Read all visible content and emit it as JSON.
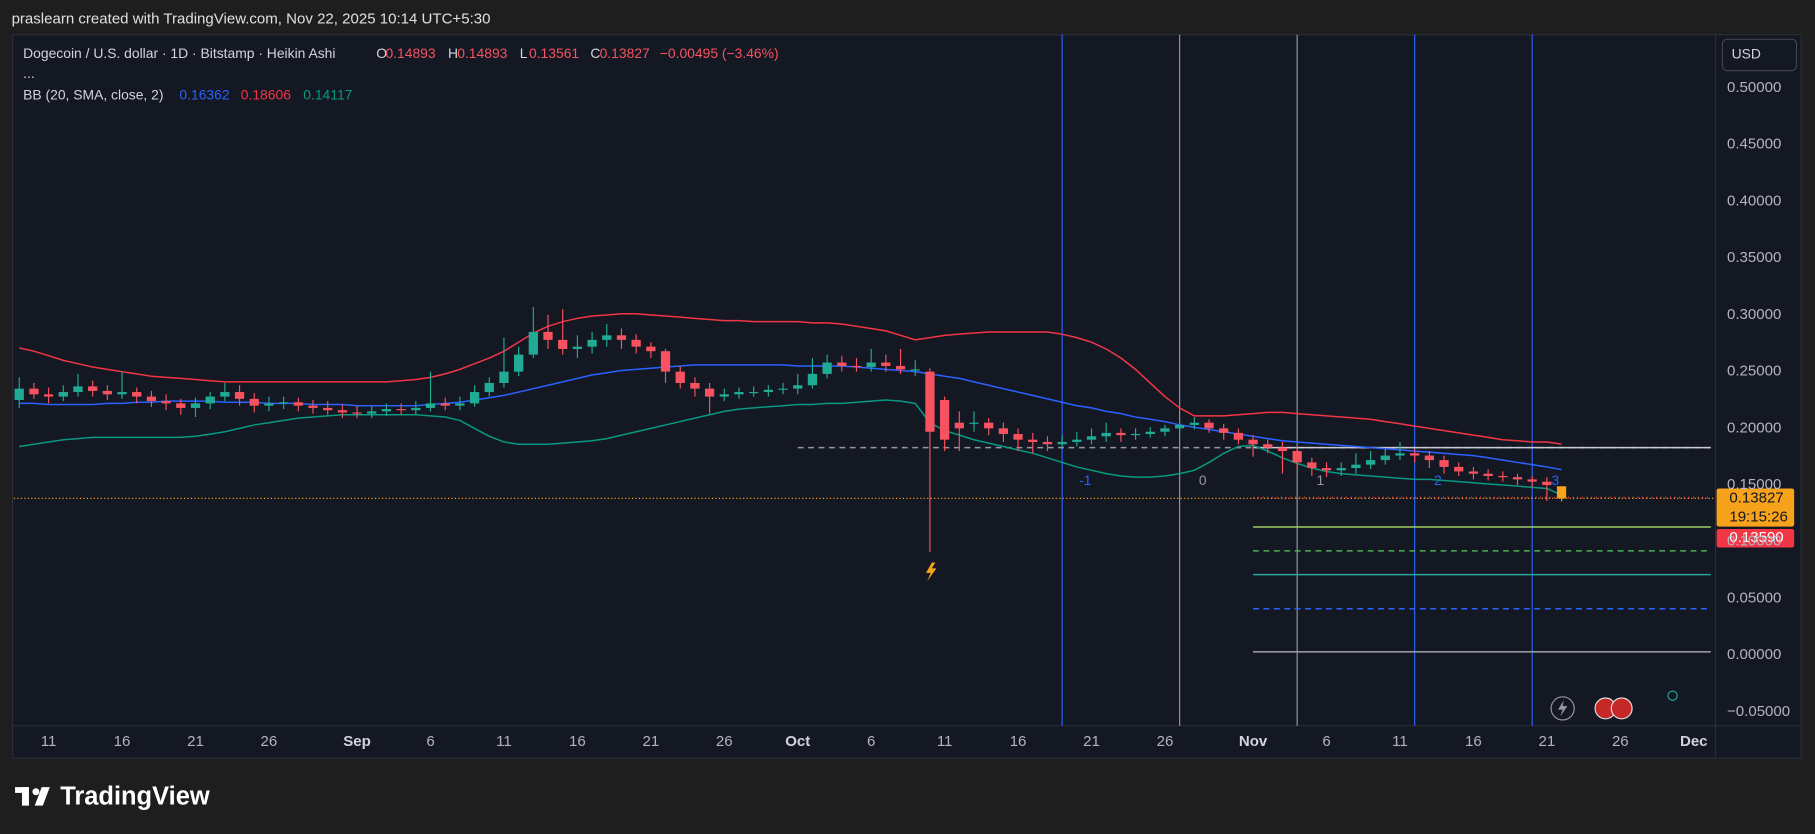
{
  "header": {
    "credit": "praslearn created with TradingView.com, Nov 22, 2025 10:14 UTC+5:30"
  },
  "chart_data": {
    "type": "candlestick",
    "symbol": "Dogecoin / U.S. dollar · 1D · Bitstamp · Heikin Ashi",
    "ohlc_keys": [
      "O",
      "H",
      "L",
      "C"
    ],
    "change": "−0.00495 (−3.46%)",
    "more": "...",
    "currency": "USD",
    "countdown": "19:15:26",
    "second_price": {
      "value": 0.1359,
      "label": "0.13590"
    },
    "up_color": "#22ab94",
    "down_color": "#f7525f",
    "last_color": "#f7a21b",
    "categories": [
      null,
      null,
      "11",
      null,
      null,
      null,
      null,
      "16",
      null,
      null,
      null,
      null,
      "21",
      null,
      null,
      null,
      null,
      "26",
      null,
      null,
      null,
      null,
      null,
      "Sep",
      null,
      null,
      null,
      null,
      "6",
      null,
      null,
      null,
      null,
      "11",
      null,
      null,
      null,
      null,
      "16",
      null,
      null,
      null,
      null,
      "21",
      null,
      null,
      null,
      null,
      "26",
      null,
      null,
      null,
      null,
      "Oct",
      null,
      null,
      null,
      null,
      "6",
      null,
      null,
      null,
      null,
      "11",
      null,
      null,
      null,
      null,
      "16",
      null,
      null,
      null,
      null,
      "21",
      null,
      null,
      null,
      null,
      "26",
      null,
      null,
      null,
      null,
      null,
      "Nov",
      null,
      null,
      null,
      null,
      "6",
      null,
      null,
      null,
      null,
      "11",
      null,
      null,
      null,
      null,
      "16",
      null,
      null,
      null,
      null,
      "21",
      null,
      null,
      null,
      null,
      "26",
      null,
      null,
      null,
      null,
      "Dec",
      null
    ],
    "month_labels": [
      "Sep",
      "Oct",
      "Nov",
      "Dec"
    ],
    "ohlc": [
      [
        0.225,
        0.245,
        0.218,
        0.235
      ],
      [
        0.235,
        0.24,
        0.226,
        0.23
      ],
      [
        0.23,
        0.236,
        0.222,
        0.228
      ],
      [
        0.228,
        0.238,
        0.224,
        0.232
      ],
      [
        0.232,
        0.248,
        0.228,
        0.237
      ],
      [
        0.237,
        0.242,
        0.228,
        0.233
      ],
      [
        0.233,
        0.238,
        0.225,
        0.23
      ],
      [
        0.23,
        0.25,
        0.226,
        0.232
      ],
      [
        0.232,
        0.236,
        0.222,
        0.228
      ],
      [
        0.228,
        0.233,
        0.219,
        0.224
      ],
      [
        0.224,
        0.23,
        0.216,
        0.222
      ],
      [
        0.222,
        0.226,
        0.212,
        0.218
      ],
      [
        0.218,
        0.227,
        0.21,
        0.222
      ],
      [
        0.222,
        0.232,
        0.217,
        0.228
      ],
      [
        0.228,
        0.24,
        0.224,
        0.232
      ],
      [
        0.232,
        0.238,
        0.22,
        0.226
      ],
      [
        0.226,
        0.231,
        0.214,
        0.22
      ],
      [
        0.22,
        0.228,
        0.215,
        0.222
      ],
      [
        0.222,
        0.228,
        0.217,
        0.223
      ],
      [
        0.223,
        0.227,
        0.215,
        0.22
      ],
      [
        0.22,
        0.225,
        0.213,
        0.218
      ],
      [
        0.218,
        0.224,
        0.212,
        0.216
      ],
      [
        0.216,
        0.221,
        0.209,
        0.214
      ],
      [
        0.214,
        0.22,
        0.209,
        0.213
      ],
      [
        0.213,
        0.22,
        0.209,
        0.215
      ],
      [
        0.215,
        0.222,
        0.211,
        0.217
      ],
      [
        0.217,
        0.222,
        0.212,
        0.216
      ],
      [
        0.216,
        0.224,
        0.212,
        0.218
      ],
      [
        0.218,
        0.25,
        0.215,
        0.222
      ],
      [
        0.222,
        0.227,
        0.216,
        0.22
      ],
      [
        0.22,
        0.228,
        0.216,
        0.222
      ],
      [
        0.222,
        0.238,
        0.219,
        0.232
      ],
      [
        0.232,
        0.245,
        0.228,
        0.24
      ],
      [
        0.24,
        0.28,
        0.236,
        0.25
      ],
      [
        0.25,
        0.272,
        0.246,
        0.265
      ],
      [
        0.265,
        0.307,
        0.262,
        0.285
      ],
      [
        0.285,
        0.3,
        0.27,
        0.278
      ],
      [
        0.278,
        0.305,
        0.265,
        0.27
      ],
      [
        0.27,
        0.282,
        0.262,
        0.272
      ],
      [
        0.272,
        0.285,
        0.266,
        0.278
      ],
      [
        0.278,
        0.292,
        0.272,
        0.282
      ],
      [
        0.282,
        0.288,
        0.27,
        0.278
      ],
      [
        0.278,
        0.283,
        0.266,
        0.272
      ],
      [
        0.272,
        0.276,
        0.262,
        0.268
      ],
      [
        0.268,
        0.27,
        0.24,
        0.25
      ],
      [
        0.25,
        0.255,
        0.235,
        0.24
      ],
      [
        0.24,
        0.245,
        0.228,
        0.235
      ],
      [
        0.235,
        0.24,
        0.213,
        0.228
      ],
      [
        0.228,
        0.235,
        0.224,
        0.23
      ],
      [
        0.23,
        0.236,
        0.226,
        0.232
      ],
      [
        0.232,
        0.237,
        0.228,
        0.232
      ],
      [
        0.232,
        0.238,
        0.228,
        0.234
      ],
      [
        0.234,
        0.24,
        0.23,
        0.235
      ],
      [
        0.235,
        0.248,
        0.23,
        0.238
      ],
      [
        0.238,
        0.262,
        0.235,
        0.248
      ],
      [
        0.248,
        0.265,
        0.244,
        0.258
      ],
      [
        0.258,
        0.264,
        0.25,
        0.255
      ],
      [
        0.255,
        0.262,
        0.25,
        0.254
      ],
      [
        0.254,
        0.27,
        0.25,
        0.258
      ],
      [
        0.258,
        0.265,
        0.25,
        0.255
      ],
      [
        0.255,
        0.27,
        0.248,
        0.252
      ],
      [
        0.252,
        0.26,
        0.246,
        0.252
      ],
      [
        0.25,
        0.253,
        0.091,
        0.197
      ],
      [
        0.225,
        0.228,
        0.18,
        0.19
      ],
      [
        0.205,
        0.215,
        0.18,
        0.2
      ],
      [
        0.205,
        0.215,
        0.197,
        0.205
      ],
      [
        0.205,
        0.209,
        0.194,
        0.2
      ],
      [
        0.2,
        0.205,
        0.188,
        0.195
      ],
      [
        0.195,
        0.2,
        0.18,
        0.19
      ],
      [
        0.19,
        0.196,
        0.178,
        0.188
      ],
      [
        0.188,
        0.193,
        0.18,
        0.186
      ],
      [
        0.186,
        0.194,
        0.182,
        0.188
      ],
      [
        0.188,
        0.197,
        0.184,
        0.19
      ],
      [
        0.19,
        0.2,
        0.186,
        0.193
      ],
      [
        0.193,
        0.205,
        0.188,
        0.196
      ],
      [
        0.196,
        0.2,
        0.188,
        0.194
      ],
      [
        0.194,
        0.2,
        0.19,
        0.195
      ],
      [
        0.195,
        0.201,
        0.192,
        0.197
      ],
      [
        0.197,
        0.203,
        0.193,
        0.2
      ],
      [
        0.2,
        0.206,
        0.196,
        0.203
      ],
      [
        0.203,
        0.21,
        0.199,
        0.205
      ],
      [
        0.205,
        0.208,
        0.196,
        0.2
      ],
      [
        0.2,
        0.204,
        0.19,
        0.196
      ],
      [
        0.196,
        0.2,
        0.186,
        0.19
      ],
      [
        0.19,
        0.194,
        0.175,
        0.186
      ],
      [
        0.186,
        0.19,
        0.178,
        0.183
      ],
      [
        0.183,
        0.188,
        0.16,
        0.18
      ],
      [
        0.18,
        0.184,
        0.165,
        0.17
      ],
      [
        0.17,
        0.174,
        0.158,
        0.165
      ],
      [
        0.165,
        0.17,
        0.157,
        0.163
      ],
      [
        0.163,
        0.17,
        0.158,
        0.165
      ],
      [
        0.165,
        0.178,
        0.16,
        0.168
      ],
      [
        0.168,
        0.18,
        0.164,
        0.172
      ],
      [
        0.172,
        0.182,
        0.168,
        0.176
      ],
      [
        0.176,
        0.188,
        0.172,
        0.178
      ],
      [
        0.178,
        0.182,
        0.17,
        0.176
      ],
      [
        0.176,
        0.18,
        0.165,
        0.172
      ],
      [
        0.172,
        0.176,
        0.16,
        0.166
      ],
      [
        0.166,
        0.17,
        0.158,
        0.162
      ],
      [
        0.162,
        0.166,
        0.155,
        0.16
      ],
      [
        0.16,
        0.164,
        0.154,
        0.158
      ],
      [
        0.158,
        0.162,
        0.153,
        0.157
      ],
      [
        0.157,
        0.16,
        0.15,
        0.155
      ],
      [
        0.155,
        0.158,
        0.148,
        0.153
      ],
      [
        0.153,
        0.157,
        0.136,
        0.15
      ],
      [
        0.14893,
        0.14893,
        0.13561,
        0.13827
      ],
      null,
      null,
      null,
      null,
      null,
      null,
      null,
      null,
      null,
      null
    ],
    "bollinger": {
      "label": "BB (20, SMA, close, 2)",
      "lines": [
        {
          "color": "#2962ff",
          "values": [
            0.222,
            0.222,
            0.221,
            0.221,
            0.221,
            0.221,
            0.222,
            0.222,
            0.223,
            0.223,
            0.224,
            0.224,
            0.224,
            0.224,
            0.223,
            0.223,
            0.223,
            0.222,
            0.222,
            0.222,
            0.221,
            0.221,
            0.221,
            0.22,
            0.22,
            0.22,
            0.22,
            0.22,
            0.221,
            0.222,
            0.223,
            0.225,
            0.227,
            0.229,
            0.232,
            0.235,
            0.238,
            0.241,
            0.244,
            0.247,
            0.249,
            0.251,
            0.252,
            0.253,
            0.254,
            0.255,
            0.256,
            0.256,
            0.256,
            0.256,
            0.256,
            0.256,
            0.256,
            0.255,
            0.255,
            0.255,
            0.255,
            0.254,
            0.253,
            0.252,
            0.251,
            0.25,
            0.248,
            0.246,
            0.244,
            0.241,
            0.238,
            0.235,
            0.232,
            0.229,
            0.226,
            0.223,
            0.22,
            0.218,
            0.215,
            0.213,
            0.21,
            0.208,
            0.206,
            0.203,
            0.201,
            0.199,
            0.197,
            0.195,
            0.193,
            0.191,
            0.189,
            0.188,
            0.187,
            0.186,
            0.185,
            0.184,
            0.183,
            0.182,
            0.181,
            0.18,
            0.179,
            0.178,
            0.177,
            0.176,
            0.174,
            0.172,
            0.17,
            0.168,
            0.166,
            0.16362,
            null,
            null,
            null,
            null,
            null,
            null,
            null,
            null,
            null,
            null
          ]
        },
        {
          "color": "#f23645",
          "values": [
            0.271,
            0.268,
            0.264,
            0.26,
            0.257,
            0.254,
            0.252,
            0.25,
            0.248,
            0.246,
            0.245,
            0.244,
            0.243,
            0.242,
            0.241,
            0.241,
            0.241,
            0.241,
            0.241,
            0.241,
            0.241,
            0.241,
            0.241,
            0.241,
            0.241,
            0.241,
            0.242,
            0.243,
            0.245,
            0.248,
            0.252,
            0.257,
            0.262,
            0.268,
            0.276,
            0.284,
            0.29,
            0.294,
            0.297,
            0.299,
            0.3,
            0.301,
            0.301,
            0.3,
            0.299,
            0.298,
            0.297,
            0.296,
            0.295,
            0.295,
            0.294,
            0.294,
            0.294,
            0.294,
            0.293,
            0.293,
            0.292,
            0.29,
            0.288,
            0.286,
            0.282,
            0.278,
            0.28,
            0.282,
            0.283,
            0.284,
            0.285,
            0.285,
            0.285,
            0.285,
            0.285,
            0.283,
            0.28,
            0.276,
            0.27,
            0.262,
            0.252,
            0.24,
            0.228,
            0.218,
            0.211,
            0.211,
            0.211,
            0.212,
            0.213,
            0.214,
            0.214,
            0.213,
            0.212,
            0.211,
            0.21,
            0.209,
            0.208,
            0.206,
            0.204,
            0.202,
            0.2,
            0.198,
            0.196,
            0.194,
            0.192,
            0.19,
            0.189,
            0.188,
            0.188,
            0.18606,
            null,
            null,
            null,
            null,
            null,
            null,
            null,
            null,
            null,
            null
          ]
        },
        {
          "color": "#089981",
          "values": [
            0.184,
            0.186,
            0.188,
            0.19,
            0.191,
            0.192,
            0.192,
            0.192,
            0.192,
            0.192,
            0.192,
            0.192,
            0.193,
            0.195,
            0.197,
            0.2,
            0.203,
            0.205,
            0.207,
            0.209,
            0.21,
            0.211,
            0.212,
            0.212,
            0.212,
            0.212,
            0.212,
            0.212,
            0.211,
            0.21,
            0.207,
            0.2,
            0.193,
            0.188,
            0.186,
            0.186,
            0.186,
            0.187,
            0.188,
            0.189,
            0.191,
            0.194,
            0.197,
            0.2,
            0.203,
            0.206,
            0.209,
            0.212,
            0.215,
            0.217,
            0.218,
            0.219,
            0.22,
            0.221,
            0.221,
            0.222,
            0.222,
            0.223,
            0.224,
            0.225,
            0.224,
            0.222,
            0.205,
            0.198,
            0.194,
            0.19,
            0.187,
            0.184,
            0.181,
            0.178,
            0.174,
            0.17,
            0.166,
            0.163,
            0.16,
            0.158,
            0.157,
            0.157,
            0.158,
            0.16,
            0.163,
            0.17,
            0.178,
            0.184,
            0.185,
            0.18,
            0.174,
            0.169,
            0.165,
            0.162,
            0.16,
            0.159,
            0.158,
            0.157,
            0.156,
            0.155,
            0.155,
            0.154,
            0.153,
            0.152,
            0.151,
            0.15,
            0.149,
            0.148,
            0.147,
            0.14117,
            null,
            null,
            null,
            null,
            null,
            null,
            null,
            null,
            null,
            null
          ]
        }
      ]
    },
    "levels": [
      {
        "value": 0.183,
        "start": 53,
        "color": "#9598a1",
        "style": "dashed"
      },
      {
        "value": 0.183,
        "start": 84,
        "color": "#c9ccd4",
        "style": "solid"
      },
      {
        "value": 0.139,
        "start": 84,
        "color": "#f23645",
        "style": "dotted"
      },
      {
        "value": 0.113,
        "start": 84,
        "color": "#9ccc65",
        "style": "solid"
      },
      {
        "value": 0.092,
        "start": 84,
        "color": "#4caf50",
        "style": "dashed"
      },
      {
        "value": 0.071,
        "start": 84,
        "color": "#26a69a",
        "style": "solid"
      },
      {
        "value": 0.041,
        "start": 84,
        "color": "#2962ff",
        "style": "dashed"
      },
      {
        "value": 0.003,
        "start": 84,
        "color": "#9598a1",
        "style": "solid"
      }
    ],
    "time_zones": [
      {
        "at": 71,
        "label": -1,
        "color": "#2962ff"
      },
      {
        "at": 79,
        "label": 0,
        "color": "#9598a1"
      },
      {
        "at": 87,
        "label": 1,
        "color": "#9598a1"
      },
      {
        "at": 95,
        "label": 2,
        "color": "#2962ff"
      },
      {
        "at": 103,
        "label": 3,
        "color": "#2962ff"
      }
    ],
    "ylim": [
      -0.0622,
      0.547
    ],
    "yticks": [
      {
        "value": 0.5,
        "label": "0.50000"
      },
      {
        "value": 0.45,
        "label": "0.45000"
      },
      {
        "value": 0.4,
        "label": "0.40000"
      },
      {
        "value": 0.35,
        "label": "0.35000"
      },
      {
        "value": 0.3,
        "label": "0.30000"
      },
      {
        "value": 0.25,
        "label": "0.25000"
      },
      {
        "value": 0.2,
        "label": "0.20000"
      },
      {
        "value": 0.15,
        "label": "0.15000"
      },
      {
        "value": 0.1,
        "label": "0.10000"
      },
      {
        "value": 0.05,
        "label": "0.05000"
      },
      {
        "value": 0,
        "label": "0.00000"
      },
      {
        "value": -0.05,
        "label": "−0.05000"
      }
    ],
    "grid": false
  },
  "footer": {
    "brand": "TradingView"
  }
}
